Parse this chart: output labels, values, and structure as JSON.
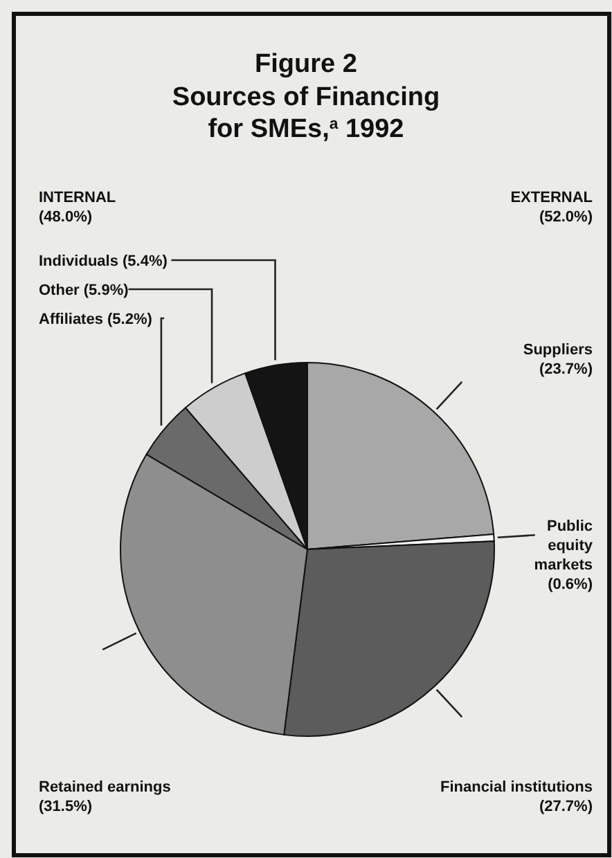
{
  "chart_data": {
    "type": "pie",
    "title": "Figure 2",
    "subtitle": "Sources of Financing for SMEs,$^{a}$ 1992",
    "annotations": [
      "INTERNAL\n(48.0%)",
      "EXTERNAL\n(52.0%)"
    ],
    "categories": [
      "Suppliers",
      "Public equity markets",
      "Financial institutions",
      "Retained earnings",
      "Affiliates",
      "Other",
      "Individuals"
    ],
    "values": [
      23.7,
      0.6,
      27.7,
      31.5,
      5.2,
      5.9,
      5.4
    ],
    "value_labels": [
      "(23.7%)",
      "(0.6%)",
      "(27.7%)",
      "(31.5%)",
      "(5.2%)",
      "(5.9%)",
      "(5.4%)"
    ],
    "colors": [
      "#a8a8a8",
      "#f4f4f4",
      "#5c5c5c",
      "#8e8e8e",
      "#6a6a6a",
      "#cdcdcd",
      "#141414"
    ]
  }
}
